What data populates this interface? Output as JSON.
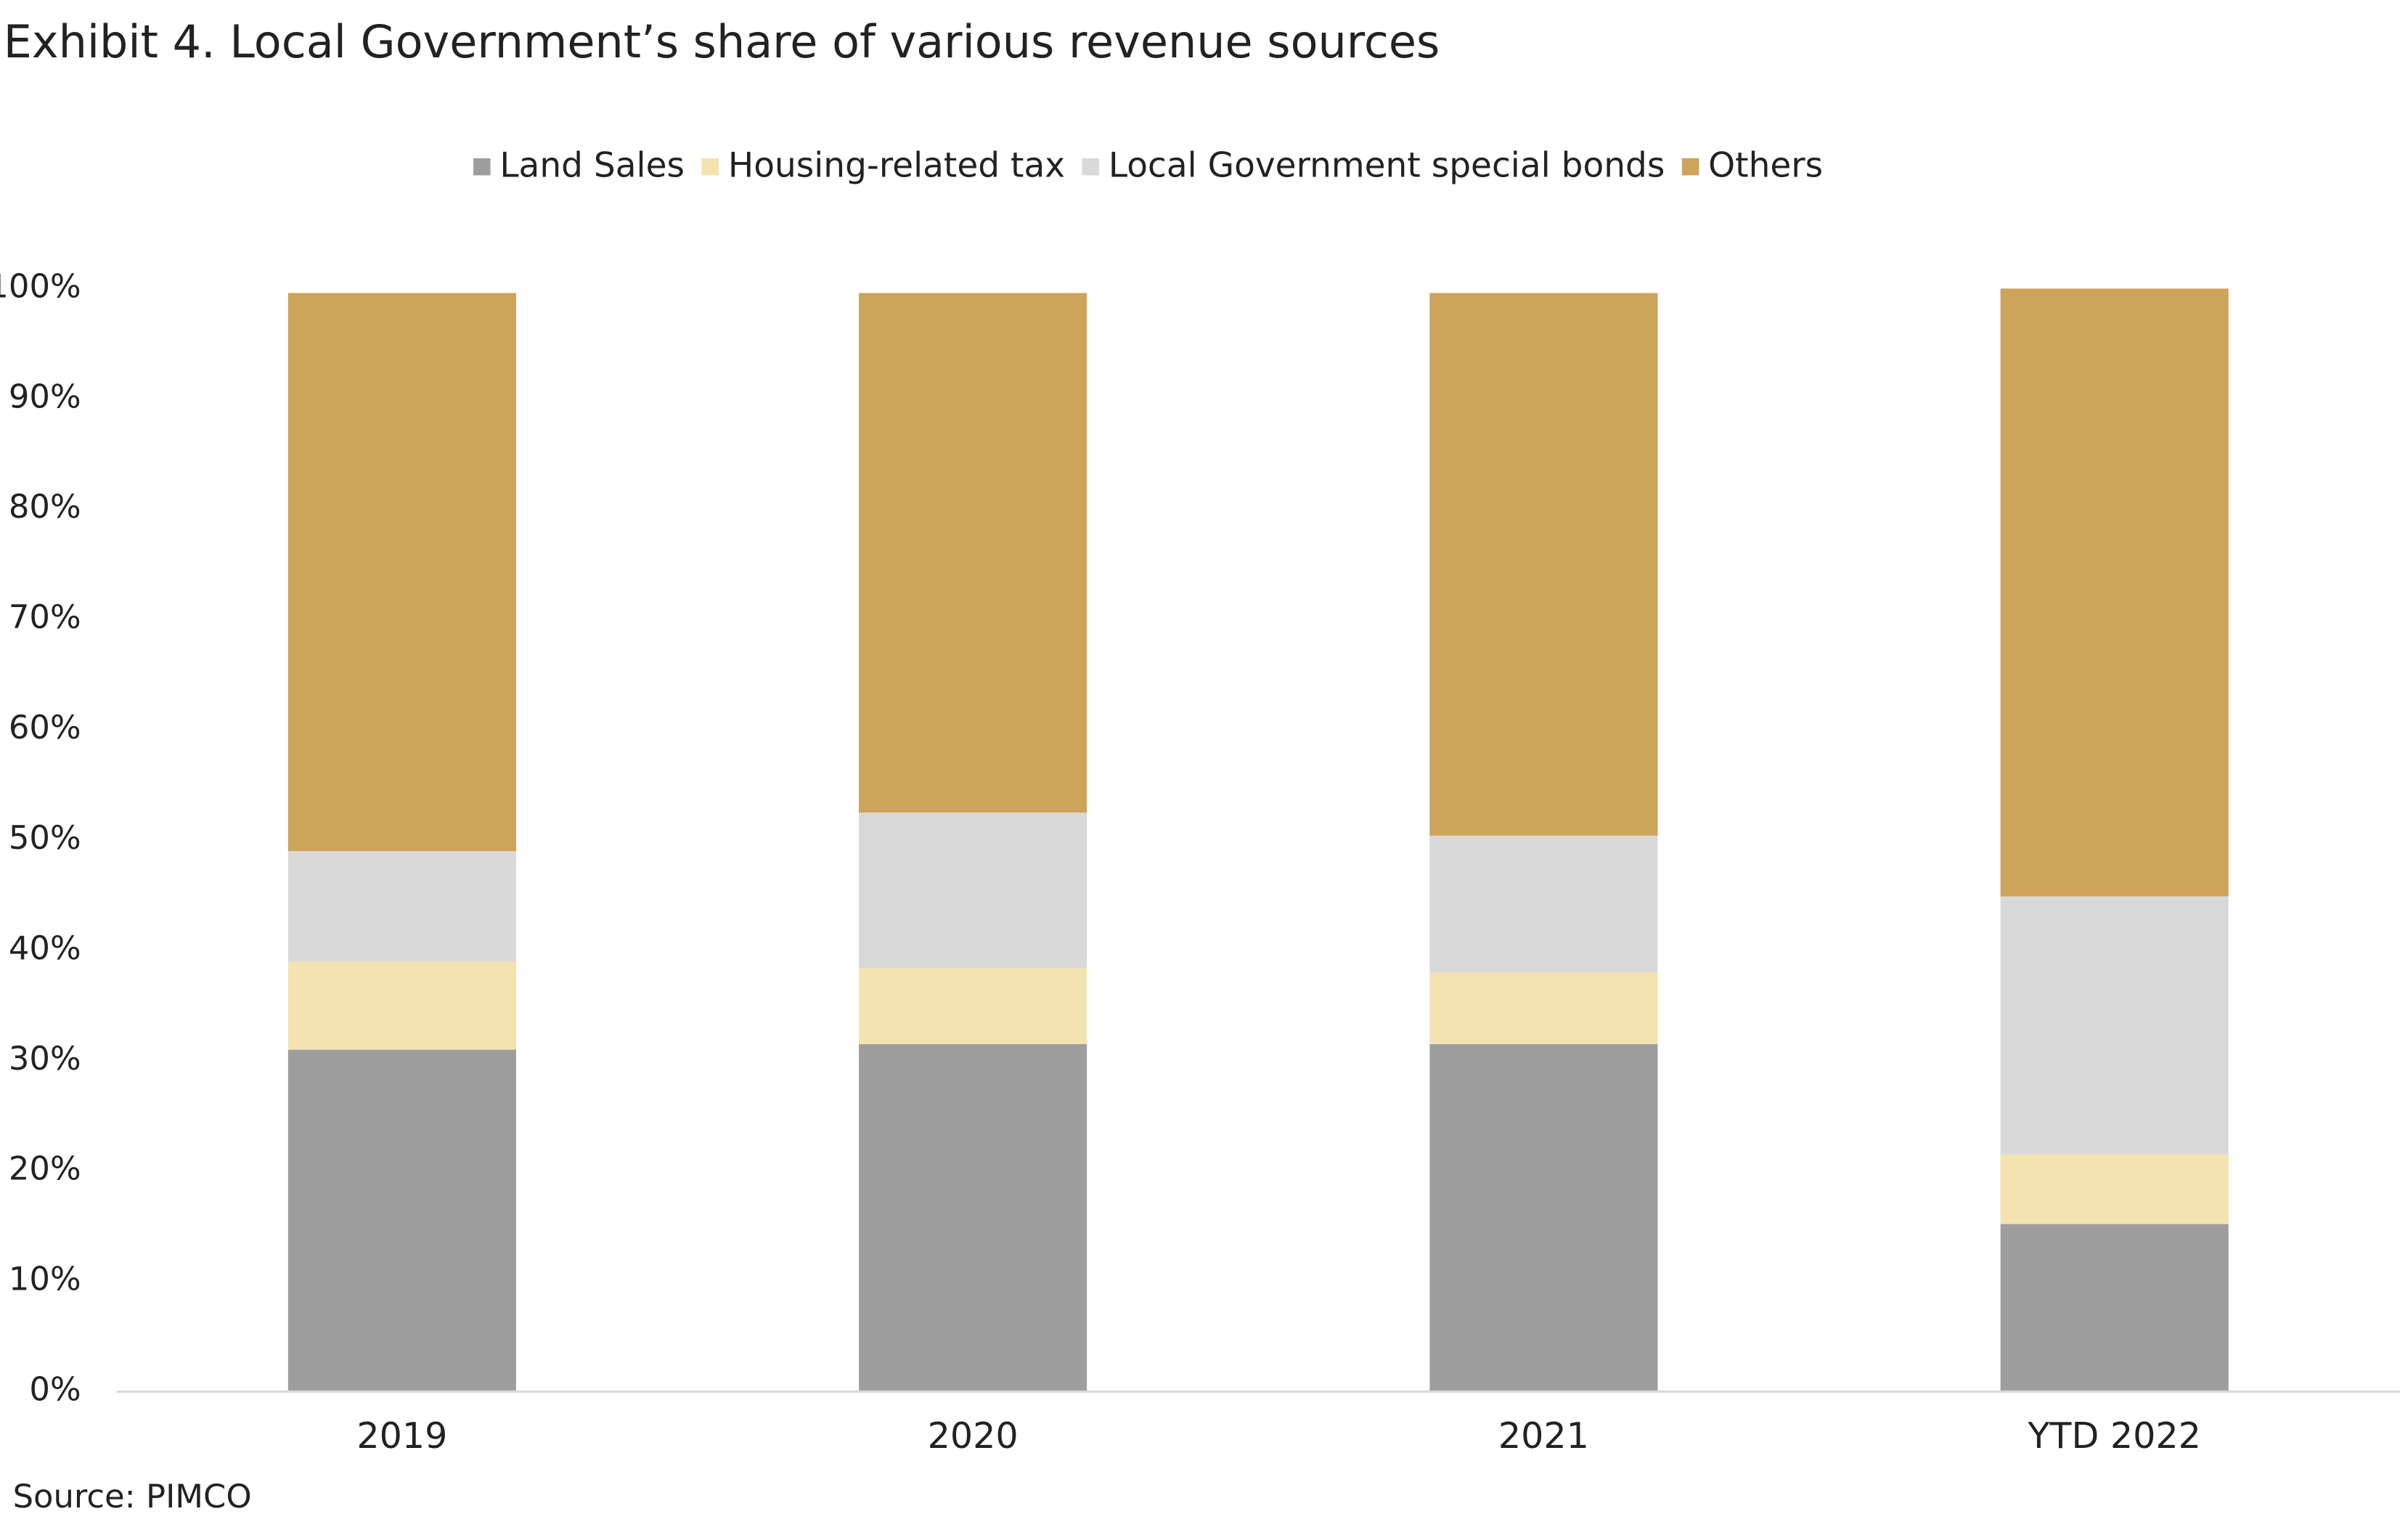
{
  "chart_data": {
    "type": "stacked-bar",
    "title": "Exhibit 4. Local Government’s share of various revenue sources",
    "source": "Source: PIMCO",
    "categories": [
      "2019",
      "2020",
      "2021",
      "YTD 2022"
    ],
    "series": [
      {
        "name": "Land Sales",
        "color": "#9e9e9e",
        "values": [
          31,
          31.5,
          31.5,
          15.2
        ]
      },
      {
        "name": "Housing-related tax",
        "color": "#f2e3b0",
        "values": [
          8,
          6.9,
          6.5,
          6.3
        ]
      },
      {
        "name": "Local Government special bonds",
        "color": "#d9d9d9",
        "values": [
          10,
          14.1,
          12.4,
          23.4
        ]
      },
      {
        "name": "Others",
        "color": "#cea35a",
        "values": [
          50.6,
          47.1,
          49.2,
          55.1
        ]
      }
    ],
    "ylim": [
      0,
      100
    ],
    "yticks": [
      {
        "value": 0,
        "label": "0%"
      },
      {
        "value": 10,
        "label": "10%"
      },
      {
        "value": 20,
        "label": "20%"
      },
      {
        "value": 30,
        "label": "30%"
      },
      {
        "value": 40,
        "label": "40%"
      },
      {
        "value": 50,
        "label": "50%"
      },
      {
        "value": 60,
        "label": "60%"
      },
      {
        "value": 70,
        "label": "70%"
      },
      {
        "value": 80,
        "label": "80%"
      },
      {
        "value": 90,
        "label": "90%"
      },
      {
        "value": 100,
        "label": "100%"
      }
    ],
    "grid": false,
    "legend": "top"
  }
}
